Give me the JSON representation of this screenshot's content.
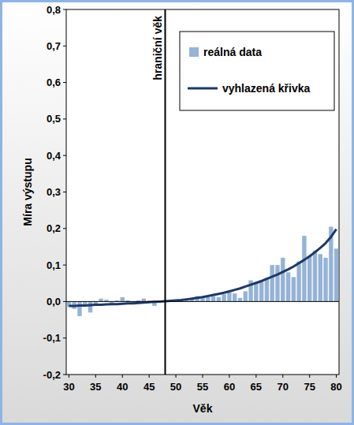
{
  "chart_data": {
    "type": "bar",
    "x_label": "Věk",
    "y_label": "Míra výstupu",
    "annotations": [
      {
        "text": "hraniční věk",
        "x": 48
      }
    ],
    "x": [
      30,
      31,
      32,
      33,
      34,
      35,
      36,
      37,
      38,
      39,
      40,
      41,
      42,
      43,
      44,
      45,
      46,
      47,
      48,
      49,
      50,
      51,
      52,
      53,
      54,
      55,
      56,
      57,
      58,
      59,
      60,
      61,
      62,
      63,
      64,
      65,
      66,
      67,
      68,
      69,
      70,
      71,
      72,
      73,
      74,
      75,
      76,
      77,
      78,
      79,
      80
    ],
    "series": [
      {
        "name": "reálná data",
        "type": "bar",
        "color": "#95b3d7",
        "values": [
          -0.015,
          -0.02,
          -0.04,
          -0.01,
          -0.03,
          -0.01,
          0.008,
          0.005,
          -0.005,
          0.003,
          0.012,
          0.003,
          -0.005,
          0.003,
          0.008,
          0.002,
          -0.012,
          0.002,
          0.001,
          0.003,
          0.003,
          0.004,
          0.005,
          0.008,
          0.015,
          0.01,
          0.012,
          0.015,
          0.012,
          0.02,
          0.025,
          0.022,
          0.01,
          0.028,
          0.058,
          0.052,
          0.058,
          0.065,
          0.1,
          0.1,
          0.12,
          0.08,
          0.067,
          0.11,
          0.18,
          0.125,
          0.14,
          0.13,
          0.12,
          0.205,
          0.145
        ]
      },
      {
        "name": "vyhlazená křivka",
        "type": "line",
        "color": "#1f3864",
        "values": [
          -0.012,
          -0.012,
          -0.011,
          -0.011,
          -0.01,
          -0.009,
          -0.009,
          -0.008,
          -0.007,
          -0.007,
          -0.006,
          -0.005,
          -0.005,
          -0.004,
          -0.003,
          -0.002,
          -0.001,
          0.0,
          0.001,
          0.002,
          0.003,
          0.004,
          0.006,
          0.008,
          0.01,
          0.012,
          0.015,
          0.018,
          0.021,
          0.024,
          0.028,
          0.032,
          0.036,
          0.041,
          0.046,
          0.051,
          0.056,
          0.062,
          0.068,
          0.074,
          0.081,
          0.088,
          0.096,
          0.105,
          0.114,
          0.124,
          0.135,
          0.147,
          0.16,
          0.177,
          0.198
        ]
      }
    ],
    "xlim": [
      29.5,
      80.5
    ],
    "xticks": [
      30,
      35,
      40,
      45,
      50,
      55,
      60,
      65,
      70,
      75,
      80
    ],
    "ylim": [
      -0.2,
      0.8
    ],
    "yticks": [
      {
        "value": -0.2,
        "label": "-0,2"
      },
      {
        "value": -0.1,
        "label": "-0,1"
      },
      {
        "value": 0,
        "label": "0,0"
      },
      {
        "value": 0.1,
        "label": "0,1"
      },
      {
        "value": 0.2,
        "label": "0,2"
      },
      {
        "value": 0.3,
        "label": "0,3"
      },
      {
        "value": 0.4,
        "label": "0,4"
      },
      {
        "value": 0.5,
        "label": "0,5"
      },
      {
        "value": 0.6,
        "label": "0,6"
      },
      {
        "value": 0.7,
        "label": "0,7"
      },
      {
        "value": 0.8,
        "label": "0,8"
      }
    ],
    "grid": false,
    "legend": "top-right"
  }
}
